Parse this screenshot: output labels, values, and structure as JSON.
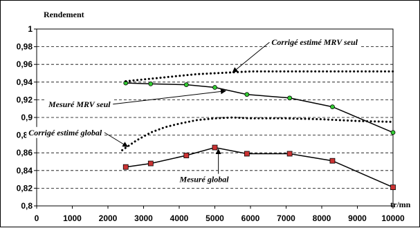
{
  "chart_data": {
    "type": "line",
    "ylabel": "Rendement",
    "xlabel": "tr/mn",
    "xlim": [
      0,
      10000
    ],
    "ylim": [
      0.8,
      1.0
    ],
    "x_ticks": [
      0,
      1000,
      2000,
      3000,
      4000,
      5000,
      6000,
      7000,
      8000,
      9000,
      10000
    ],
    "x_tick_labels": [
      "0",
      "1000",
      "2000",
      "3000",
      "4000",
      "5000",
      "6000",
      "7000",
      "8000",
      "9000",
      "10000"
    ],
    "y_ticks": [
      0.8,
      0.82,
      0.84,
      0.86,
      0.88,
      0.9,
      0.92,
      0.94,
      0.96,
      0.98,
      1.0
    ],
    "y_tick_labels": [
      "0,8",
      "0,82",
      "0,84",
      "0,86",
      "0,88",
      "0,9",
      "0,92",
      "0,94",
      "0,96",
      "0,98",
      "1"
    ],
    "grid": "horizontal dashed",
    "series": [
      {
        "name": "Mesuré MRV seul",
        "style": "solid-line-circle-markers",
        "color": "#000000",
        "marker_color": "#33cc33",
        "x": [
          2500,
          3200,
          4200,
          5000,
          5900,
          7100,
          8300,
          10000
        ],
        "y": [
          0.939,
          0.938,
          0.937,
          0.934,
          0.926,
          0.922,
          0.912,
          0.883
        ]
      },
      {
        "name": "Mesuré global",
        "style": "solid-line-square-markers",
        "color": "#000000",
        "marker_color": "#cc3333",
        "x": [
          2500,
          3200,
          4200,
          5000,
          5900,
          7100,
          8300,
          10000
        ],
        "y": [
          0.844,
          0.848,
          0.857,
          0.866,
          0.859,
          0.859,
          0.851,
          0.821
        ]
      },
      {
        "name": "Corrigé estimé MRV seul",
        "style": "dotted",
        "color": "#000000",
        "x": [
          2500,
          3000,
          3500,
          4000,
          4500,
          5000,
          5500,
          6000,
          7000,
          8000,
          9000,
          10000
        ],
        "y": [
          0.941,
          0.943,
          0.945,
          0.947,
          0.949,
          0.95,
          0.951,
          0.952,
          0.952,
          0.952,
          0.952,
          0.952
        ]
      },
      {
        "name": "Corrigé estimé global",
        "style": "dotted",
        "color": "#000000",
        "x": [
          2400,
          2800,
          3200,
          3600,
          4000,
          4500,
          5000,
          5500,
          6000,
          7000,
          8000,
          9000,
          10000
        ],
        "y": [
          0.863,
          0.874,
          0.883,
          0.889,
          0.893,
          0.897,
          0.899,
          0.9,
          0.899,
          0.899,
          0.898,
          0.896,
          0.895
        ]
      }
    ],
    "annotations": [
      {
        "text": "Corrigé estimé MRV seul",
        "box_at": [
          7800,
          0.985
        ],
        "arrow_to": [
          5500,
          0.951
        ]
      },
      {
        "text": "Mesuré MRV seul",
        "box_at": [
          1200,
          0.915
        ],
        "arrow_to": [
          5300,
          0.93
        ]
      },
      {
        "text": "Corrigé estimé global",
        "box_at": [
          800,
          0.883
        ],
        "arrow_to": [
          2550,
          0.867
        ]
      },
      {
        "text": "Mesuré global",
        "box_at": [
          4700,
          0.83
        ],
        "arrow_to": [
          5100,
          0.864
        ]
      }
    ]
  }
}
